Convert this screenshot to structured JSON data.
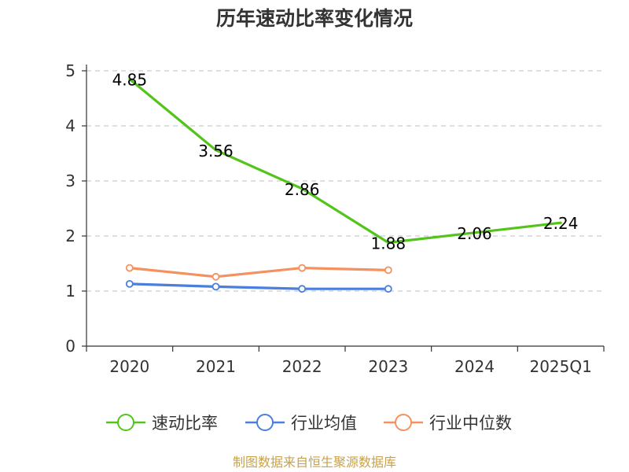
{
  "chart_data": {
    "type": "line",
    "title": "历年速动比率变化情况",
    "categories": [
      "2020",
      "2021",
      "2022",
      "2023",
      "2024",
      "2025Q1"
    ],
    "ylim": [
      0,
      5
    ],
    "yticks": [
      "0",
      "1",
      "2",
      "3",
      "4",
      "5"
    ],
    "grid": true,
    "legend_position": "bottom",
    "series": [
      {
        "name": "速动比率",
        "color": "#52c41a",
        "values": [
          4.85,
          3.56,
          2.86,
          1.88,
          2.06,
          2.24
        ],
        "labels": [
          "4.85",
          "3.56",
          "2.86",
          "1.88",
          "2.06",
          "2.24"
        ],
        "markers": false
      },
      {
        "name": "行业均值",
        "color": "#4a7fdd",
        "values": [
          1.13,
          1.08,
          1.04,
          1.04,
          null,
          null
        ],
        "markers": true
      },
      {
        "name": "行业中位数",
        "color": "#f4915e",
        "values": [
          1.42,
          1.26,
          1.42,
          1.38,
          null,
          null
        ],
        "markers": true
      }
    ]
  },
  "footer": {
    "source": "制图数据来自恒生聚源数据库"
  }
}
